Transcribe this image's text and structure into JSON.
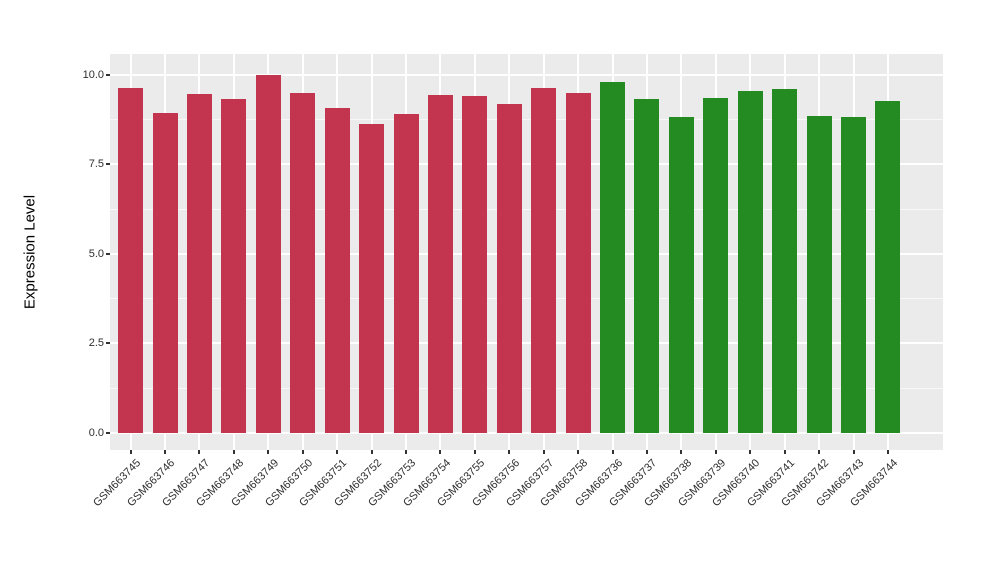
{
  "chart_data": {
    "type": "bar",
    "title": "",
    "xlabel": "",
    "ylabel": "Expression Level",
    "y_ticks": [
      0.0,
      2.5,
      5.0,
      7.5,
      10.0
    ],
    "y_tick_labels": [
      "0.0",
      "2.5",
      "5.0",
      "7.5",
      "10.0"
    ],
    "y_minor_ticks": [
      1.25,
      3.75,
      6.25,
      8.75
    ],
    "ylim": [
      -0.47,
      10.58
    ],
    "grid": "major-and-minor-white-on-gray",
    "legend_position": "none",
    "categories": [
      "GSM663745",
      "GSM663746",
      "GSM663747",
      "GSM663748",
      "GSM663749",
      "GSM663750",
      "GSM663751",
      "GSM663752",
      "GSM663753",
      "GSM663754",
      "GSM663755",
      "GSM663756",
      "GSM663757",
      "GSM663758",
      "GSM663736",
      "GSM663737",
      "GSM663738",
      "GSM663739",
      "GSM663740",
      "GSM663741",
      "GSM663742",
      "GSM663743",
      "GSM663744"
    ],
    "values": [
      9.64,
      8.92,
      9.45,
      9.32,
      10.0,
      9.49,
      9.07,
      8.62,
      8.9,
      9.43,
      9.4,
      9.19,
      9.64,
      9.5,
      9.79,
      9.33,
      8.82,
      9.34,
      9.54,
      9.59,
      8.84,
      8.81,
      9.27
    ],
    "groups": [
      "red",
      "red",
      "red",
      "red",
      "red",
      "red",
      "red",
      "red",
      "red",
      "red",
      "red",
      "red",
      "red",
      "red",
      "green",
      "green",
      "green",
      "green",
      "green",
      "green",
      "green",
      "green",
      "green"
    ]
  },
  "style": {
    "group_colors": {
      "red": "#C3344E",
      "green": "#238B21"
    },
    "panel_bg": "#EBEBEB",
    "grid_color": "#FFFFFF",
    "tick_color": "#333333",
    "axis_text_color": "#2F2F2F"
  }
}
